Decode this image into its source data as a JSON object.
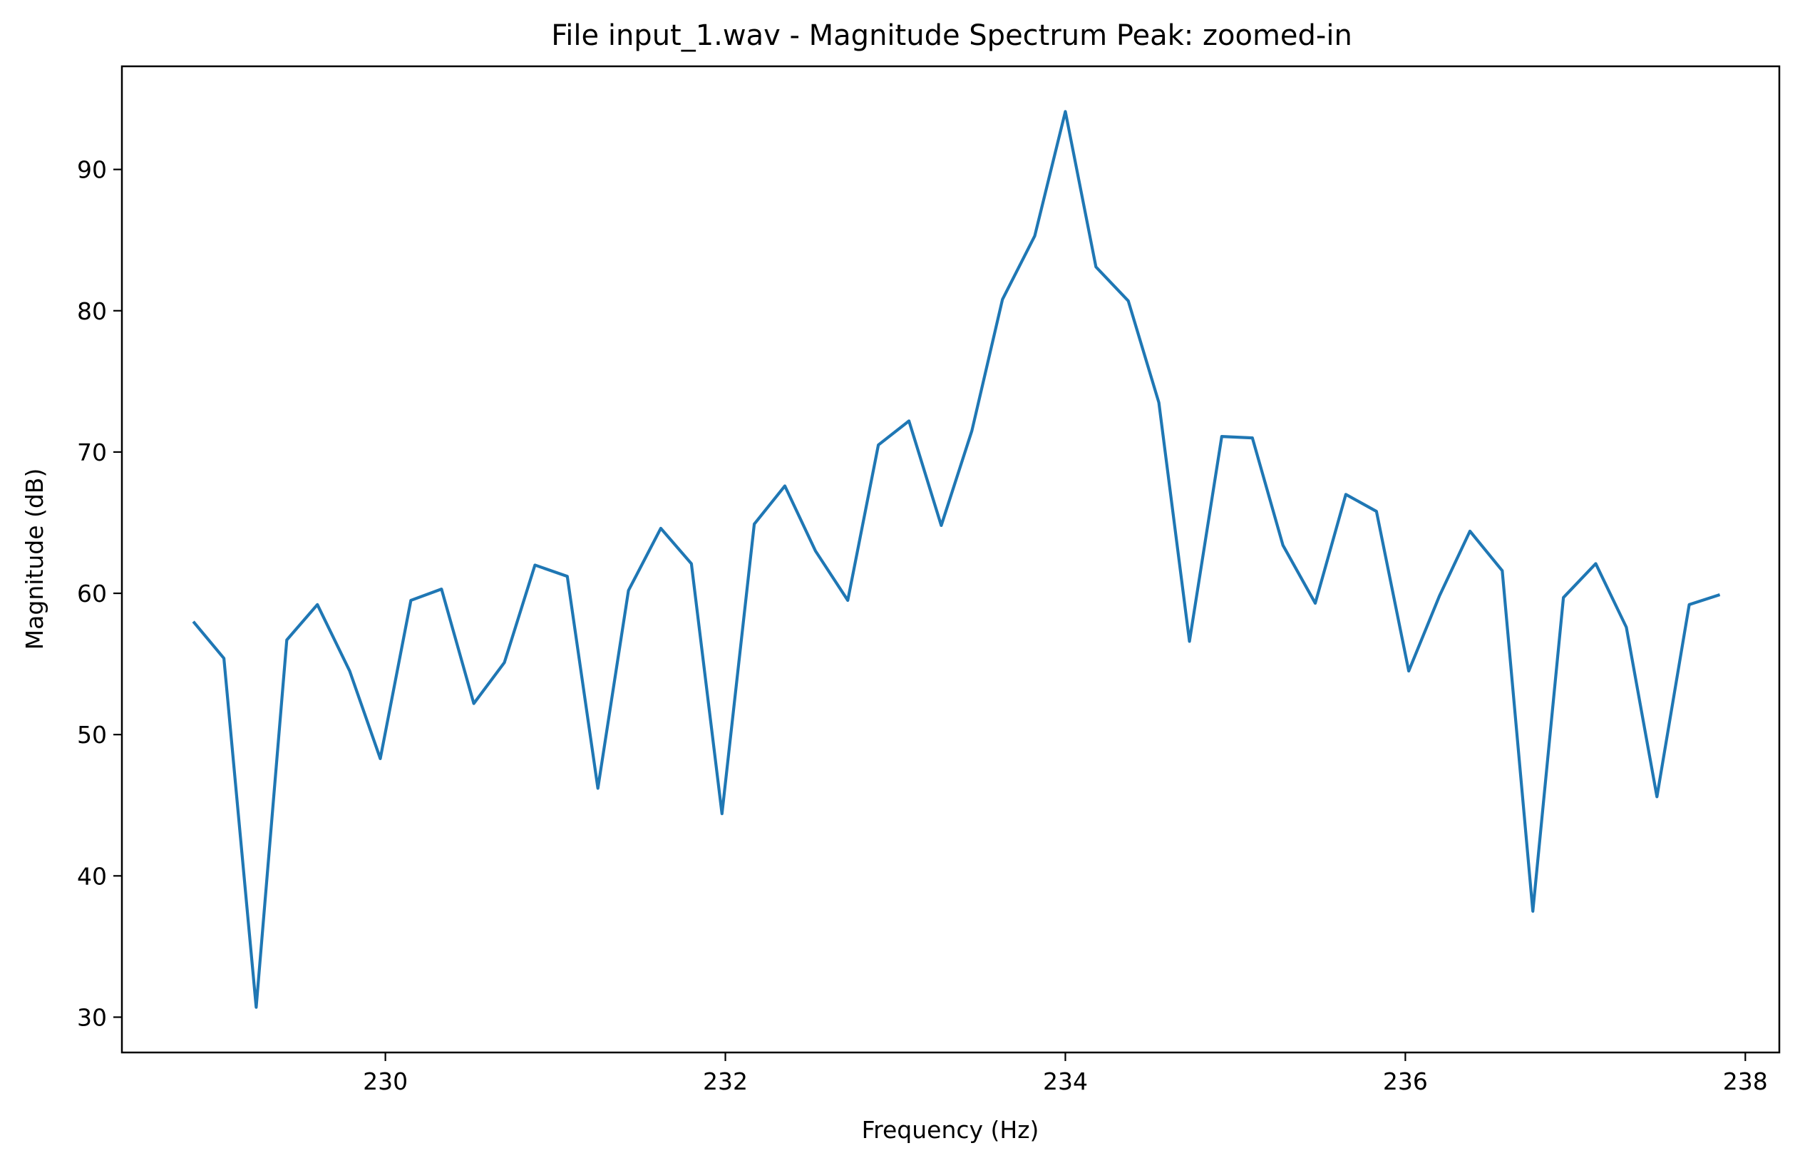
{
  "chart_data": {
    "type": "line",
    "title": "File input_1.wav - Magnitude Spectrum Peak: zoomed-in",
    "xlabel": "Frequency (Hz)",
    "ylabel": "Magnitude (dB)",
    "xlim": [
      228.45,
      238.2
    ],
    "ylim": [
      27.5,
      97.3
    ],
    "xticks": [
      230,
      232,
      234,
      236,
      238
    ],
    "yticks": [
      30,
      40,
      50,
      60,
      70,
      80,
      90
    ],
    "grid": false,
    "line_color": "#1f77b4",
    "series": [
      {
        "x": [
          228.87,
          229.05,
          229.24,
          229.42,
          229.6,
          229.79,
          229.97,
          230.15,
          230.33,
          230.52,
          230.7,
          230.88,
          231.07,
          231.25,
          231.43,
          231.62,
          231.8,
          231.98,
          232.17,
          232.35,
          232.53,
          232.72,
          232.9,
          233.08,
          233.27,
          233.45,
          233.63,
          233.82,
          234.0,
          234.18,
          234.37,
          234.55,
          234.73,
          234.92,
          235.1,
          235.28,
          235.47,
          235.65,
          235.83,
          236.02,
          236.2,
          236.38,
          236.57,
          236.75,
          236.93,
          237.12,
          237.3,
          237.48,
          237.67,
          237.85
        ],
        "values": [
          58.0,
          55.4,
          30.7,
          56.7,
          59.2,
          54.5,
          48.3,
          59.5,
          60.3,
          52.2,
          55.1,
          62.0,
          61.2,
          46.2,
          60.2,
          64.6,
          62.1,
          44.4,
          64.9,
          67.6,
          63.0,
          59.5,
          70.5,
          72.2,
          64.8,
          71.5,
          80.8,
          85.3,
          94.1,
          83.1,
          80.7,
          73.5,
          56.6,
          71.1,
          71.0,
          63.4,
          59.3,
          67.0,
          65.8,
          54.5,
          59.8,
          64.4,
          61.6,
          37.5,
          59.7,
          62.1,
          57.6,
          45.6,
          59.2,
          59.9
        ]
      }
    ]
  }
}
